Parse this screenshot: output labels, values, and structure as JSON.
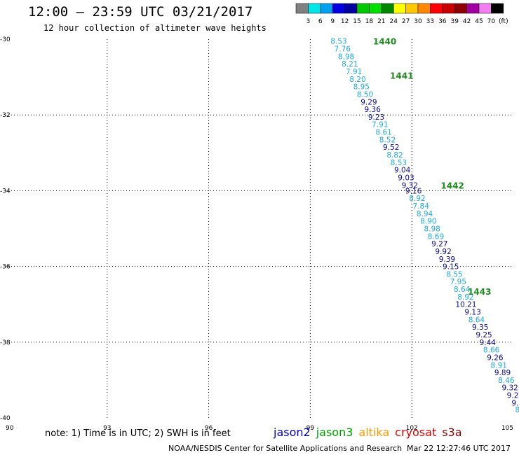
{
  "header": {
    "title": "12:00 – 23:59 UTC 03/21/2017",
    "subtitle": "12 hour collection of altimeter wave heights"
  },
  "legend": {
    "colors": [
      "#808080",
      "#00e5e5",
      "#00a0f0",
      "#0000e0",
      "#0000a0",
      "#00c800",
      "#00e000",
      "#008800",
      "#ffff00",
      "#ffc800",
      "#ff8800",
      "#ff0000",
      "#c80000",
      "#900000",
      "#a000a0",
      "#f080f0",
      "#000000"
    ],
    "labels": [
      "3",
      "6",
      "9",
      "12",
      "15",
      "18",
      "21",
      "24",
      "27",
      "30",
      "33",
      "36",
      "39",
      "42",
      "45",
      "70",
      "(ft)"
    ]
  },
  "map": {
    "lon_range": [
      90,
      105
    ],
    "lat_range": [
      -40,
      -30
    ],
    "lon_ticks": [
      "90",
      "93",
      "96",
      "99",
      "102",
      "105"
    ],
    "lat_ticks": [
      "-30",
      "-32",
      "-34",
      "-36",
      "-38",
      "-40"
    ],
    "track_colors": {
      "light": "#1eaadc",
      "dark": "#0a0a96"
    },
    "orbit_label_color": "#1e8c1e",
    "orbits": [
      {
        "label": "1440",
        "lon": 101.2,
        "lat": -30.05
      },
      {
        "label": "1441",
        "lon": 101.7,
        "lat": -30.95
      },
      {
        "label": "1442",
        "lon": 103.2,
        "lat": -33.85
      },
      {
        "label": "1443",
        "lon": 104.0,
        "lat": -36.65
      }
    ],
    "points": [
      {
        "v": "8.53",
        "lon": 99.84,
        "lat": -30.05,
        "c": "light"
      },
      {
        "v": "7.76",
        "lon": 99.95,
        "lat": -30.25,
        "c": "light"
      },
      {
        "v": "8.98",
        "lon": 100.06,
        "lat": -30.45,
        "c": "light"
      },
      {
        "v": "8.21",
        "lon": 100.17,
        "lat": -30.65,
        "c": "light"
      },
      {
        "v": "7.91",
        "lon": 100.29,
        "lat": -30.85,
        "c": "light"
      },
      {
        "v": "8.20",
        "lon": 100.4,
        "lat": -31.05,
        "c": "light"
      },
      {
        "v": "8.95",
        "lon": 100.51,
        "lat": -31.25,
        "c": "light"
      },
      {
        "v": "8.50",
        "lon": 100.62,
        "lat": -31.45,
        "c": "light"
      },
      {
        "v": "9.29",
        "lon": 100.73,
        "lat": -31.65,
        "c": "dark"
      },
      {
        "v": "9.36",
        "lon": 100.84,
        "lat": -31.85,
        "c": "dark"
      },
      {
        "v": "9.23",
        "lon": 100.95,
        "lat": -32.05,
        "c": "dark"
      },
      {
        "v": "7.91",
        "lon": 101.06,
        "lat": -32.25,
        "c": "light"
      },
      {
        "v": "8.61",
        "lon": 101.17,
        "lat": -32.45,
        "c": "light"
      },
      {
        "v": "8.52",
        "lon": 101.28,
        "lat": -32.65,
        "c": "light"
      },
      {
        "v": "9.52",
        "lon": 101.39,
        "lat": -32.85,
        "c": "dark"
      },
      {
        "v": "8.82",
        "lon": 101.5,
        "lat": -33.05,
        "c": "light"
      },
      {
        "v": "8.53",
        "lon": 101.61,
        "lat": -33.25,
        "c": "light"
      },
      {
        "v": "9.04",
        "lon": 101.72,
        "lat": -33.45,
        "c": "dark"
      },
      {
        "v": "9.03",
        "lon": 101.83,
        "lat": -33.65,
        "c": "dark"
      },
      {
        "v": "9.32",
        "lon": 101.94,
        "lat": -33.85,
        "c": "dark"
      },
      {
        "v": "9.16",
        "lon": 102.05,
        "lat": -34.0,
        "c": "dark"
      },
      {
        "v": "8.92",
        "lon": 102.16,
        "lat": -34.2,
        "c": "light"
      },
      {
        "v": "7.84",
        "lon": 102.27,
        "lat": -34.4,
        "c": "light"
      },
      {
        "v": "8.94",
        "lon": 102.38,
        "lat": -34.6,
        "c": "light"
      },
      {
        "v": "8.90",
        "lon": 102.49,
        "lat": -34.8,
        "c": "light"
      },
      {
        "v": "8.98",
        "lon": 102.6,
        "lat": -35.0,
        "c": "light"
      },
      {
        "v": "8.69",
        "lon": 102.71,
        "lat": -35.2,
        "c": "light"
      },
      {
        "v": "9.27",
        "lon": 102.82,
        "lat": -35.4,
        "c": "dark"
      },
      {
        "v": "9.92",
        "lon": 102.93,
        "lat": -35.6,
        "c": "dark"
      },
      {
        "v": "9.39",
        "lon": 103.04,
        "lat": -35.8,
        "c": "dark"
      },
      {
        "v": "9.15",
        "lon": 103.15,
        "lat": -36.0,
        "c": "dark"
      },
      {
        "v": "8.55",
        "lon": 103.26,
        "lat": -36.2,
        "c": "light"
      },
      {
        "v": "7.95",
        "lon": 103.37,
        "lat": -36.4,
        "c": "light"
      },
      {
        "v": "8.64",
        "lon": 103.48,
        "lat": -36.6,
        "c": "light"
      },
      {
        "v": "8.92",
        "lon": 103.59,
        "lat": -36.8,
        "c": "light"
      },
      {
        "v": "10.21",
        "lon": 103.6,
        "lat": -37.0,
        "c": "dark"
      },
      {
        "v": "9.13",
        "lon": 103.8,
        "lat": -37.2,
        "c": "dark"
      },
      {
        "v": "8.64",
        "lon": 103.91,
        "lat": -37.4,
        "c": "light"
      },
      {
        "v": "9.35",
        "lon": 104.02,
        "lat": -37.6,
        "c": "dark"
      },
      {
        "v": "9.25",
        "lon": 104.13,
        "lat": -37.8,
        "c": "dark"
      },
      {
        "v": "9.44",
        "lon": 104.24,
        "lat": -38.0,
        "c": "dark"
      },
      {
        "v": "8.66",
        "lon": 104.35,
        "lat": -38.2,
        "c": "light"
      },
      {
        "v": "9.26",
        "lon": 104.46,
        "lat": -38.4,
        "c": "dark"
      },
      {
        "v": "8.91",
        "lon": 104.57,
        "lat": -38.6,
        "c": "light"
      },
      {
        "v": "9.89",
        "lon": 104.68,
        "lat": -38.8,
        "c": "dark"
      },
      {
        "v": "8.46",
        "lon": 104.79,
        "lat": -39.0,
        "c": "light"
      },
      {
        "v": "9.32",
        "lon": 104.9,
        "lat": -39.2,
        "c": "dark"
      },
      {
        "v": "9.2",
        "lon": 104.98,
        "lat": -39.4,
        "c": "dark"
      },
      {
        "v": "9.",
        "lon": 105.05,
        "lat": -39.6,
        "c": "dark"
      },
      {
        "v": "8",
        "lon": 105.12,
        "lat": -39.78,
        "c": "light"
      }
    ]
  },
  "footer": {
    "note": "note:  1) Time is in UTC;  2) SWH is in feet",
    "satellites": [
      {
        "name": "jason2",
        "color": "#0000d0"
      },
      {
        "name": "jason3",
        "color": "#00a000"
      },
      {
        "name": "altika",
        "color": "#ff9900"
      },
      {
        "name": "cryosat",
        "color": "#e00000"
      },
      {
        "name": "s3a",
        "color": "#900000"
      }
    ],
    "credit": "NOAA/NESDIS Center for Satellite Applications and Research",
    "timestamp": "Mar 22 12:27:46 UTC 2017"
  }
}
